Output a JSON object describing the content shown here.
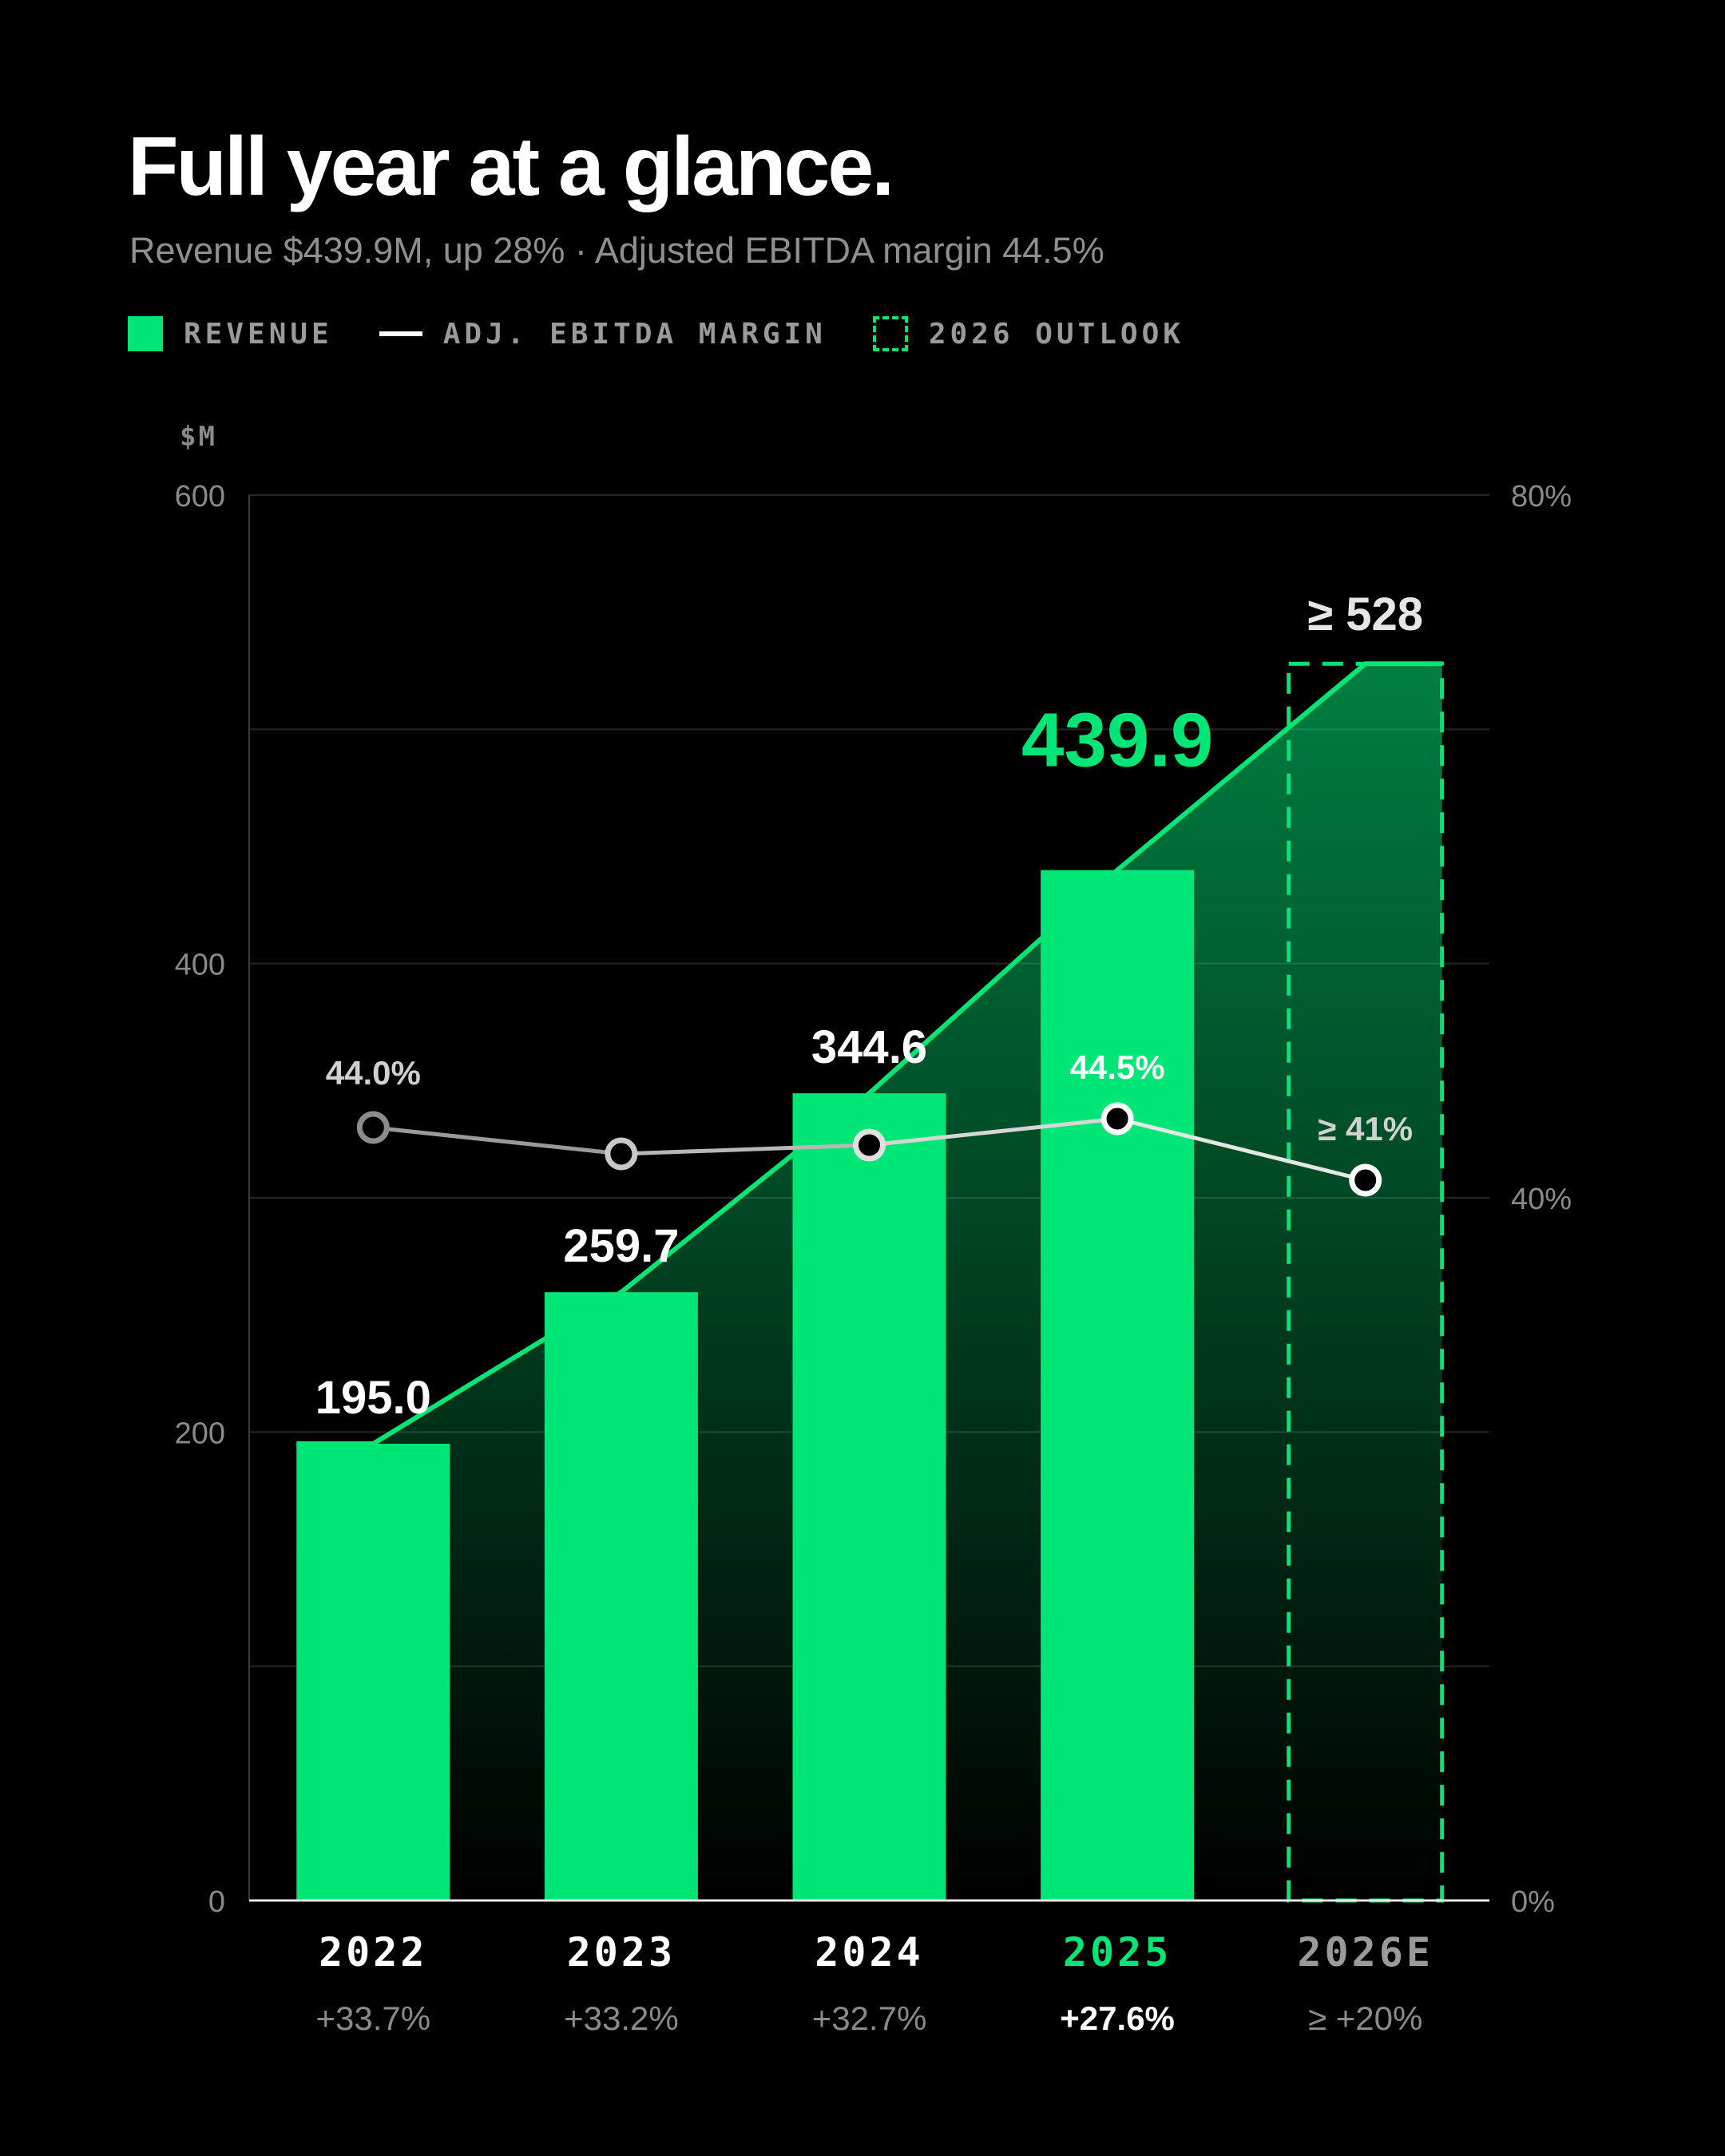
{
  "title": "Full year at a glance.",
  "subtitle": "Revenue $439.9M, up 28% · Adjusted EBITDA margin 44.5%",
  "legend": [
    {
      "label": "REVENUE"
    },
    {
      "label": "ADJ. EBITDA MARGIN"
    },
    {
      "label": "2026 OUTLOOK"
    }
  ],
  "colors": {
    "revenue": "#00e676",
    "margin_line": "#ffffff",
    "outlook": "#00e676",
    "background": "#000000"
  },
  "chart_data": {
    "type": "bar",
    "categories": [
      "2022",
      "2023",
      "2024",
      "2025",
      "2026E"
    ],
    "left_axis": {
      "unit_label": "$M",
      "range": [
        0,
        600
      ],
      "ticks": [
        "0",
        "200",
        "400",
        "600"
      ]
    },
    "right_axis": {
      "range": [
        0,
        80
      ],
      "ticks": [
        "0%",
        "40%",
        "80%"
      ]
    },
    "grid": true,
    "series": [
      {
        "name": "REVENUE",
        "type": "bar",
        "axis": "left",
        "values": [
          195.0,
          259.7,
          344.6,
          439.9,
          null
        ],
        "labels": [
          "195.0",
          "259.7",
          "344.6",
          "439.9",
          ""
        ]
      },
      {
        "name": "2026 OUTLOOK",
        "type": "bar-outline",
        "axis": "left",
        "values": [
          null,
          null,
          null,
          null,
          528
        ],
        "labels": [
          "",
          "",
          "",
          "",
          "≥ 528"
        ]
      },
      {
        "name": "ADJ. EBITDA MARGIN",
        "type": "line",
        "axis": "right",
        "values": [
          44.0,
          42.5,
          43.0,
          44.5,
          41.0
        ],
        "labels": [
          "44.0%",
          "",
          "",
          "44.5%",
          "≥ 41%"
        ]
      }
    ],
    "growth": [
      "+33.7%",
      "+33.2%",
      "+32.7%",
      "+27.6%",
      "≥ +20%"
    ],
    "highlight_category": "2025"
  }
}
